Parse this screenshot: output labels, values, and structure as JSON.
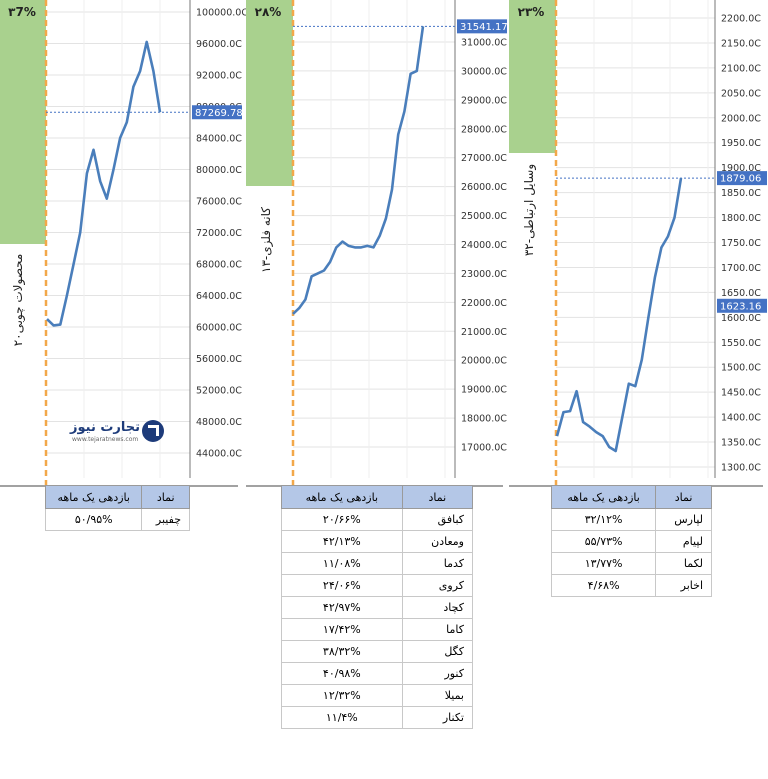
{
  "logo": {
    "name": "تجارت نیوز",
    "url": "www.tejaratnews.com"
  },
  "chart_data": [
    {
      "type": "line",
      "panel_label": "۲۰محصولات چوبی",
      "percent_label": "۳7%",
      "ylim": [
        41000,
        101000
      ],
      "yticks": [
        100000,
        96000,
        92000,
        88000,
        84000,
        80000,
        76000,
        72000,
        68000,
        64000,
        60000,
        56000,
        52000,
        48000,
        44000
      ],
      "tick_labels": [
        "100000.0C",
        "96000.0C",
        "92000.0C",
        "88000.0C",
        "84000.0C",
        "80000.0C",
        "76000.0C",
        "72000.0C",
        "68000.0C",
        "64000.0C",
        "60000.0C",
        "56000.0C",
        "52000.0C",
        "48000.0C",
        "44000.0C"
      ],
      "current_value": 87269.78,
      "current_label": "87269.78",
      "values": [
        61000,
        60200,
        60300,
        64000,
        68000,
        72000,
        79500,
        82500,
        78500,
        76300,
        80000,
        84000,
        86000,
        90500,
        92500,
        96200,
        92500,
        87270
      ],
      "table": {
        "headers": [
          "نماد",
          "بازدهی یک ماهه"
        ],
        "rows": [
          [
            "چفیبر",
            "۵۰/۹۵%"
          ]
        ]
      }
    },
    {
      "type": "line",
      "panel_label": "۱۳-کانه فلزی",
      "percent_label": "۲۸%",
      "ylim": [
        16700,
        32400
      ],
      "yticks": [
        31000,
        30000,
        29000,
        28000,
        27000,
        26000,
        25000,
        24000,
        23000,
        22000,
        21000,
        20000,
        19000,
        18000,
        17000
      ],
      "tick_labels": [
        "31000.0C",
        "30000.0C",
        "29000.0C",
        "28000.0C",
        "27000.0C",
        "26000.0C",
        "25000.0C",
        "24000.0C",
        "23000.0C",
        "22000.0C",
        "21000.0C",
        "20000.0C",
        "19000.0C",
        "18000.0C",
        "17000.0C"
      ],
      "current_value": 31541.17,
      "current_label": "31541.17",
      "values": [
        21600,
        21800,
        22100,
        22900,
        23000,
        23100,
        23400,
        23900,
        24100,
        23950,
        23900,
        23900,
        23950,
        23900,
        24300,
        24900,
        25900,
        27800,
        28600,
        29900,
        30000,
        31541
      ],
      "table": {
        "headers": [
          "نماد",
          "بازدهی یک ماهه"
        ],
        "rows": [
          [
            "کبافق",
            "۲۰/۶۶%"
          ],
          [
            "ومعادن",
            "۴۲/۱۳%"
          ],
          [
            "کدما",
            "۱۱/۰۸%"
          ],
          [
            "کروی",
            "۲۴/۰۶%"
          ],
          [
            "کچاد",
            "۴۲/۹۷%"
          ],
          [
            "کاما",
            "۱۷/۴۲%"
          ],
          [
            "کگل",
            "۳۸/۳۲%"
          ],
          [
            "کنور",
            "۴۰/۹۸%"
          ],
          [
            "بمیلا",
            "۱۲/۳۲%"
          ],
          [
            "تکنار",
            "۱۱/۴%"
          ]
        ]
      }
    },
    {
      "type": "line",
      "panel_label": "۳۲-وسایل ارتباطی",
      "percent_label": "۲۳%",
      "ylim": [
        1290,
        2210
      ],
      "yticks": [
        2200,
        2150,
        2100,
        2050,
        2000,
        1950,
        1900,
        1850,
        1800,
        1750,
        1700,
        1650,
        1600,
        1550,
        1500,
        1450,
        1400,
        1350,
        1300
      ],
      "tick_labels": [
        "2200.0C",
        "2150.0C",
        "2100.0C",
        "2050.0C",
        "2000.0C",
        "1950.0C",
        "1900.0C",
        "1850.0C",
        "1800.0C",
        "1750.0C",
        "1700.0C",
        "1650.0C",
        "1600.0C",
        "1550.0C",
        "1500.0C",
        "1450.0C",
        "1400.0C",
        "1350.0C",
        "1300.0C"
      ],
      "current_value": 1879.06,
      "current_label": "1879.06",
      "reference_value": 1623.16,
      "reference_label": "1623.16",
      "values": [
        1362,
        1410,
        1412,
        1452,
        1390,
        1381,
        1370,
        1362,
        1340,
        1332,
        1400,
        1467,
        1462,
        1515,
        1600,
        1680,
        1740,
        1762,
        1800,
        1879
      ],
      "table": {
        "headers": [
          "نماد",
          "بازدهی یک ماهه"
        ],
        "rows": [
          [
            "لپارس",
            "۳۲/۱۲%"
          ],
          [
            "لپیام",
            "۵۵/۷۳%"
          ],
          [
            "لکما",
            "۱۳/۷۷%"
          ],
          [
            "اخابر",
            "۴/۶۸%"
          ]
        ]
      }
    }
  ]
}
